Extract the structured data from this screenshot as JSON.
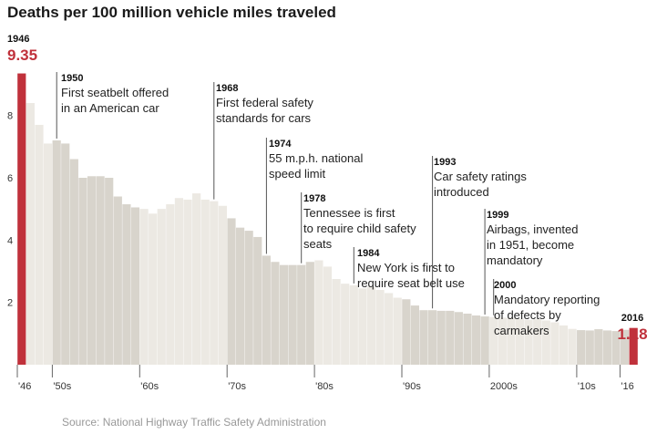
{
  "title": "Deaths per 100 million vehicle miles traveled",
  "source": "Source: National Highway Traffic Safety Administration",
  "colors": {
    "highlight": "#c0313b",
    "band_dark": "#d8d4cc",
    "band_light": "#ece9e3",
    "leader": "#555555"
  },
  "chart_data": {
    "type": "bar",
    "title": "Deaths per 100 million vehicle miles traveled",
    "xlabel": "",
    "ylabel": "",
    "ylim": [
      0,
      9.6
    ],
    "yticks": [
      "2",
      "4",
      "6",
      "8"
    ],
    "xticks": [
      {
        "label": "'46",
        "year": 1946
      },
      {
        "label": "'50s",
        "year": 1950
      },
      {
        "label": "'60s",
        "year": 1960
      },
      {
        "label": "'70s",
        "year": 1970
      },
      {
        "label": "'80s",
        "year": 1980
      },
      {
        "label": "'90s",
        "year": 1990
      },
      {
        "label": "2000s",
        "year": 2000
      },
      {
        "label": "'10s",
        "year": 2010
      },
      {
        "label": "'16",
        "year": 2016
      }
    ],
    "years": [
      1946,
      1947,
      1948,
      1949,
      1950,
      1951,
      1952,
      1953,
      1954,
      1955,
      1956,
      1957,
      1958,
      1959,
      1960,
      1961,
      1962,
      1963,
      1964,
      1965,
      1966,
      1967,
      1968,
      1969,
      1970,
      1971,
      1972,
      1973,
      1974,
      1975,
      1976,
      1977,
      1978,
      1979,
      1980,
      1981,
      1982,
      1983,
      1984,
      1985,
      1986,
      1987,
      1988,
      1989,
      1990,
      1991,
      1992,
      1993,
      1994,
      1995,
      1996,
      1997,
      1998,
      1999,
      2000,
      2001,
      2002,
      2003,
      2004,
      2005,
      2006,
      2007,
      2008,
      2009,
      2010,
      2011,
      2012,
      2013,
      2014,
      2015,
      2016
    ],
    "values": [
      9.35,
      8.4,
      7.7,
      7.1,
      7.2,
      7.1,
      6.6,
      6.0,
      6.05,
      6.05,
      6.0,
      5.4,
      5.15,
      5.05,
      5.0,
      4.85,
      5.0,
      5.15,
      5.35,
      5.3,
      5.5,
      5.3,
      5.25,
      5.1,
      4.7,
      4.4,
      4.3,
      4.1,
      3.5,
      3.3,
      3.2,
      3.2,
      3.2,
      3.3,
      3.35,
      3.15,
      2.75,
      2.6,
      2.55,
      2.45,
      2.5,
      2.4,
      2.3,
      2.15,
      2.1,
      1.9,
      1.75,
      1.75,
      1.73,
      1.73,
      1.69,
      1.64,
      1.58,
      1.55,
      1.53,
      1.51,
      1.51,
      1.48,
      1.44,
      1.46,
      1.42,
      1.36,
      1.26,
      1.15,
      1.11,
      1.1,
      1.14,
      1.1,
      1.08,
      1.12,
      1.18
    ],
    "highlighted": [
      {
        "year_label": "1946",
        "value_label": "9.35",
        "year": 1946
      },
      {
        "year_label": "2016",
        "value_label": "1.18",
        "year": 2016
      }
    ],
    "annotations": [
      {
        "year": 1950,
        "year_label": "1950",
        "lines": [
          "First seatbelt offered",
          "in an American car"
        ]
      },
      {
        "year": 1968,
        "year_label": "1968",
        "lines": [
          "First federal safety",
          "standards for cars"
        ]
      },
      {
        "year": 1974,
        "year_label": "1974",
        "lines": [
          "55 m.p.h. national",
          "speed limit"
        ]
      },
      {
        "year": 1978,
        "year_label": "1978",
        "lines": [
          "Tennessee is first",
          "to require child safety",
          "seats"
        ]
      },
      {
        "year": 1984,
        "year_label": "1984",
        "lines": [
          "New York is first to",
          "require seat belt use"
        ]
      },
      {
        "year": 1993,
        "year_label": "1993",
        "lines": [
          "Car safety ratings",
          "introduced"
        ]
      },
      {
        "year": 1999,
        "year_label": "1999",
        "lines": [
          "Airbags, invented",
          "in 1951, become",
          "mandatory"
        ]
      },
      {
        "year": 2000,
        "year_label": "2000",
        "lines": [
          "Mandatory reporting",
          "of defects by",
          "carmakers"
        ]
      }
    ]
  }
}
